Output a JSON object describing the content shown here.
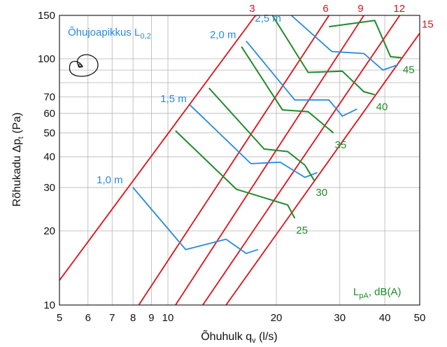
{
  "chart_data": {
    "type": "line",
    "xlabel": "Õhuhulk q",
    "xlabel_sub": "v",
    "xlabel_unit": " (l/s)",
    "ylabel": "Rõhukadu Δp",
    "ylabel_sub": "t",
    "ylabel_unit": " (Pa)",
    "x_scale": "log",
    "y_scale": "log",
    "xlim": [
      5,
      50
    ],
    "ylim": [
      10,
      150
    ],
    "x_ticks": [
      5,
      6,
      7,
      8,
      9,
      10,
      20,
      30,
      40,
      50
    ],
    "y_ticks": [
      10,
      20,
      30,
      40,
      50,
      60,
      70,
      100,
      150
    ],
    "grid": true,
    "throw_title": "Õhujoapikkus L",
    "throw_title_sub": "0,2",
    "unit_note": "L",
    "unit_note_sub": "pA",
    "unit_note_rest": ", dB(A)",
    "colors": {
      "size": "#e0101a",
      "throw": "#2a8ad6",
      "sound": "#1f8a2a",
      "grid": "#b4b4b4"
    },
    "size_lines": [
      {
        "label": "3",
        "points": [
          [
            5,
            12.6
          ],
          [
            17.5,
            150
          ]
        ]
      },
      {
        "label": "6",
        "points": [
          [
            8.3,
            10
          ],
          [
            28,
            150
          ]
        ]
      },
      {
        "label": "9",
        "points": [
          [
            10.5,
            10
          ],
          [
            35,
            150
          ]
        ]
      },
      {
        "label": "12",
        "points": [
          [
            12.5,
            10
          ],
          [
            44,
            150
          ]
        ]
      },
      {
        "label": "15",
        "points": [
          [
            14.5,
            10
          ],
          [
            50,
            127
          ]
        ]
      }
    ],
    "throw_lines": [
      {
        "label": "1,0 m",
        "points": [
          [
            8,
            30
          ],
          [
            11.2,
            16.8
          ],
          [
            14.5,
            18.5
          ],
          [
            16.5,
            16.2
          ],
          [
            17.8,
            16.8
          ]
        ]
      },
      {
        "label": "1,5 m",
        "points": [
          [
            11.5,
            65
          ],
          [
            17,
            37.5
          ],
          [
            20.5,
            38
          ],
          [
            24,
            33
          ],
          [
            26,
            34.5
          ]
        ]
      },
      {
        "label": "2,0 m",
        "points": [
          [
            16.5,
            118
          ],
          [
            22.5,
            68
          ],
          [
            28,
            68
          ],
          [
            30.5,
            58.5
          ],
          [
            33.5,
            62.5
          ]
        ]
      },
      {
        "label": "2,5 m",
        "points": [
          [
            22,
            150
          ],
          [
            28.5,
            107
          ],
          [
            35,
            105
          ],
          [
            39.5,
            90
          ],
          [
            43.5,
            94.5
          ]
        ]
      }
    ],
    "sound_lines": [
      {
        "label": "25",
        "points": [
          [
            10.5,
            51
          ],
          [
            15.5,
            29.5
          ],
          [
            21.5,
            25.5
          ],
          [
            22.5,
            22.5
          ]
        ]
      },
      {
        "label": "30",
        "points": [
          [
            13,
            76
          ],
          [
            18.5,
            43
          ],
          [
            21.5,
            42
          ],
          [
            24,
            37
          ],
          [
            25.5,
            32
          ]
        ]
      },
      {
        "label": "35",
        "points": [
          [
            16,
            112
          ],
          [
            20.8,
            62
          ],
          [
            24.5,
            61
          ],
          [
            28.8,
            50
          ]
        ]
      },
      {
        "label": "40",
        "points": [
          [
            19.5,
            150
          ],
          [
            24.5,
            88
          ],
          [
            30.5,
            89
          ],
          [
            35,
            73.5
          ],
          [
            37.5,
            71.5
          ]
        ]
      },
      {
        "label": "45",
        "points": [
          [
            28,
            135
          ],
          [
            37.5,
            143
          ],
          [
            41.5,
            102
          ],
          [
            44.5,
            101
          ]
        ]
      }
    ]
  }
}
